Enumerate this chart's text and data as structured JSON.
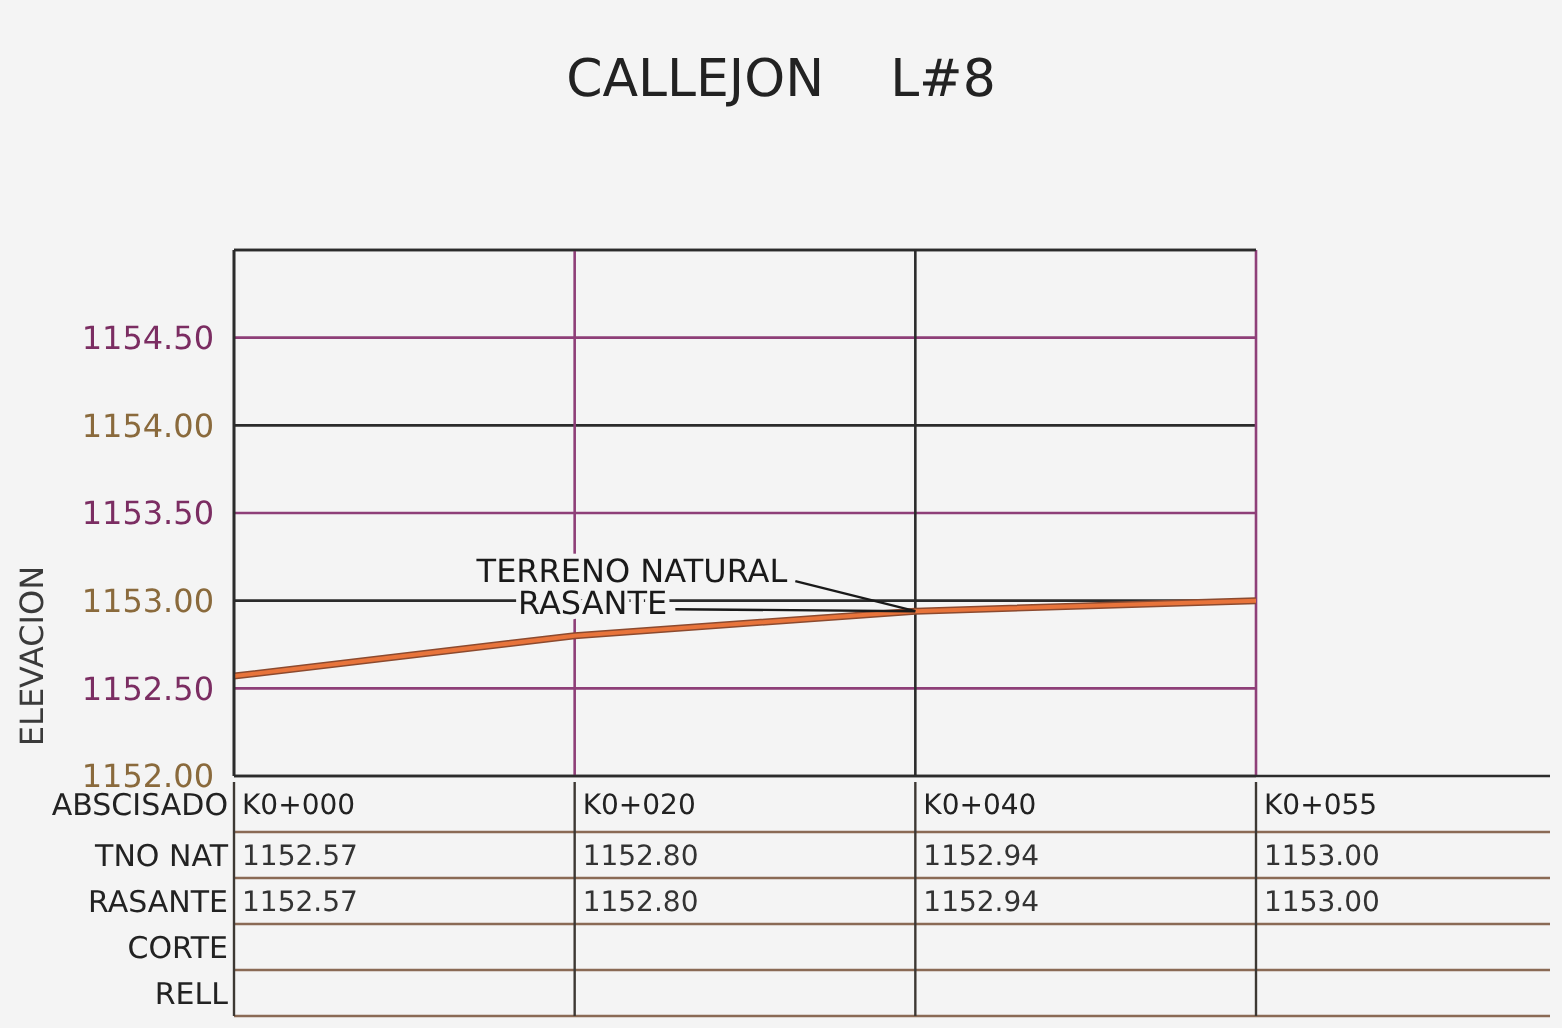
{
  "chart_data": {
    "type": "line",
    "title": "CALLEJON    L#8",
    "xlabel": "ABSCISADO",
    "ylabel": "ELEVACION",
    "categories": [
      "K0+000",
      "K0+020",
      "K0+040",
      "K0+055"
    ],
    "series": [
      {
        "name": "TERRENO NATURAL",
        "color": "#8c4a2f",
        "values": [
          1152.57,
          1152.8,
          1152.94,
          1153
        ],
        "value_labels": [
          "1152.57",
          "1152.80",
          "1152.94",
          "1153.00"
        ]
      },
      {
        "name": "RASANTE",
        "color": "#e8743b",
        "values": [
          1152.57,
          1152.8,
          1152.94,
          1153
        ],
        "value_labels": [
          "1152.57",
          "1152.80",
          "1152.94",
          "1153.00"
        ]
      }
    ],
    "ylim": [
      1152,
      1155
    ],
    "yticks": [
      {
        "value": 1152,
        "label": "1152.00"
      },
      {
        "value": 1152.5,
        "label": "1152.50"
      },
      {
        "value": 1153,
        "label": "1153.00"
      },
      {
        "value": 1153.5,
        "label": "1153.50"
      },
      {
        "value": 1154,
        "label": "1154.00"
      },
      {
        "value": 1154.5,
        "label": "1154.50"
      }
    ],
    "grid": true,
    "annotations": [
      "TNO NAT",
      "RASANTE",
      "CORTE",
      "RELL"
    ]
  }
}
